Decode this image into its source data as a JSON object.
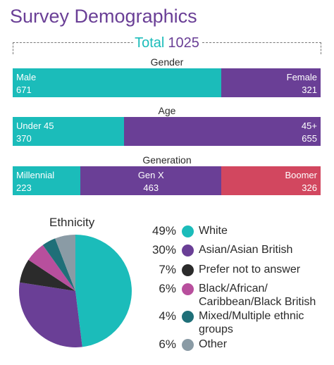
{
  "title": "Survey Demographics",
  "total": {
    "label": "Total",
    "value": "1025"
  },
  "colors": {
    "teal": "#1bbcba",
    "purple": "#6a3f96",
    "red": "#d2475f",
    "black": "#2b2b2b",
    "magenta": "#b84f9d",
    "darkteal": "#1f6f78",
    "gray": "#8a9ba5"
  },
  "chart_data": [
    {
      "type": "bar",
      "orientation": "horizontal-stacked",
      "title": "Gender",
      "segments": [
        {
          "label": "Male",
          "value": 671,
          "color": "#1bbcba"
        },
        {
          "label": "Female",
          "value": 321,
          "color": "#6a3f96"
        }
      ]
    },
    {
      "type": "bar",
      "orientation": "horizontal-stacked",
      "title": "Age",
      "segments": [
        {
          "label": "Under 45",
          "value": 370,
          "color": "#1bbcba"
        },
        {
          "label": "45+",
          "value": 655,
          "color": "#6a3f96"
        }
      ]
    },
    {
      "type": "bar",
      "orientation": "horizontal-stacked",
      "title": "Generation",
      "segments": [
        {
          "label": "Millennial",
          "value": 223,
          "color": "#1bbcba"
        },
        {
          "label": "Gen X",
          "value": 463,
          "color": "#6a3f96"
        },
        {
          "label": "Boomer",
          "value": 326,
          "color": "#d2475f"
        }
      ]
    },
    {
      "type": "pie",
      "title": "Ethnicity",
      "slices": [
        {
          "label": "White",
          "pct_label": "49%",
          "value": 49,
          "color": "#1bbcba"
        },
        {
          "label": "Asian/Asian British",
          "pct_label": "30%",
          "value": 30,
          "color": "#6a3f96"
        },
        {
          "label": "Prefer not to answer",
          "pct_label": "7%",
          "value": 7,
          "color": "#2b2b2b"
        },
        {
          "label": "Black/African/ Caribbean/Black British",
          "pct_label": "6%",
          "value": 6,
          "color": "#b84f9d"
        },
        {
          "label": "Mixed/Multiple ethnic groups",
          "pct_label": "4%",
          "value": 4,
          "color": "#1f6f78"
        },
        {
          "label": "Other",
          "pct_label": "6%",
          "value": 6,
          "color": "#8a9ba5"
        }
      ]
    }
  ]
}
